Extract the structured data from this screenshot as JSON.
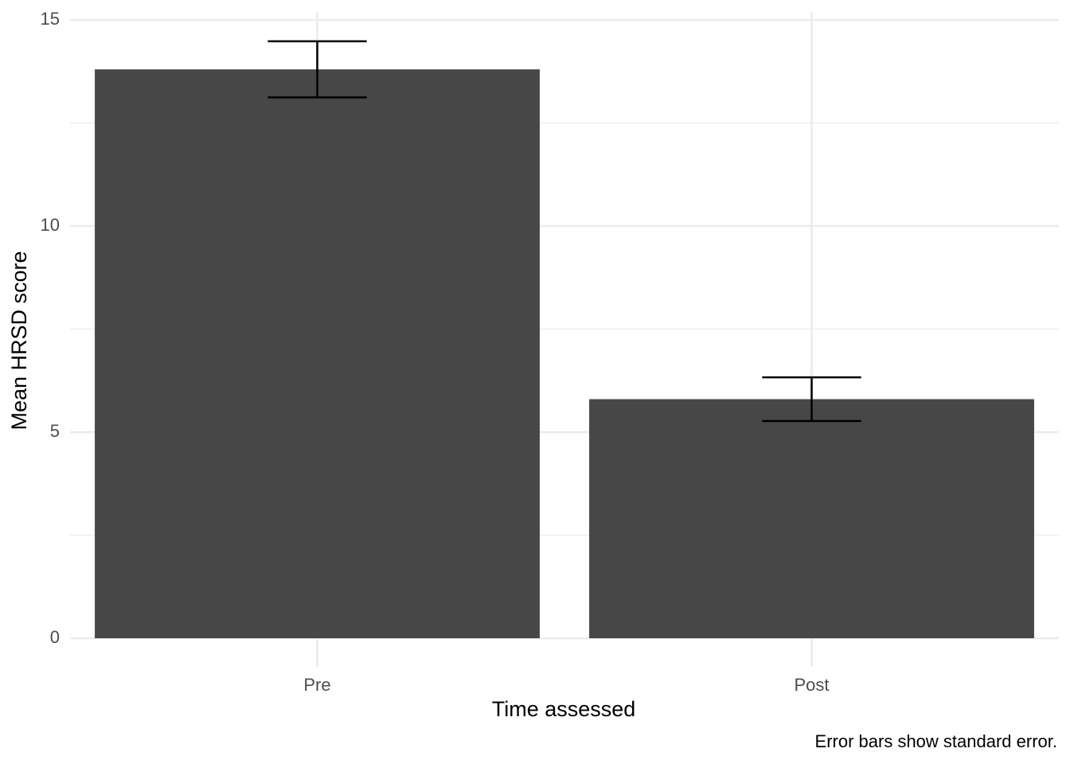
{
  "chart_data": {
    "type": "bar",
    "x_label": "Time assessed",
    "y_label": "Mean HRSD score",
    "caption": "Error bars show standard error.",
    "categories": [
      "Pre",
      "Post"
    ],
    "values": [
      13.8,
      5.8
    ],
    "errors": [
      0.68,
      0.53
    ],
    "color": "#474747",
    "error_color": "#000000",
    "ylim": [
      0,
      15
    ],
    "yticks": [
      0,
      5,
      10,
      15
    ],
    "y_minor_ticks": [
      2.5,
      7.5,
      12.5
    ],
    "grid": true
  }
}
